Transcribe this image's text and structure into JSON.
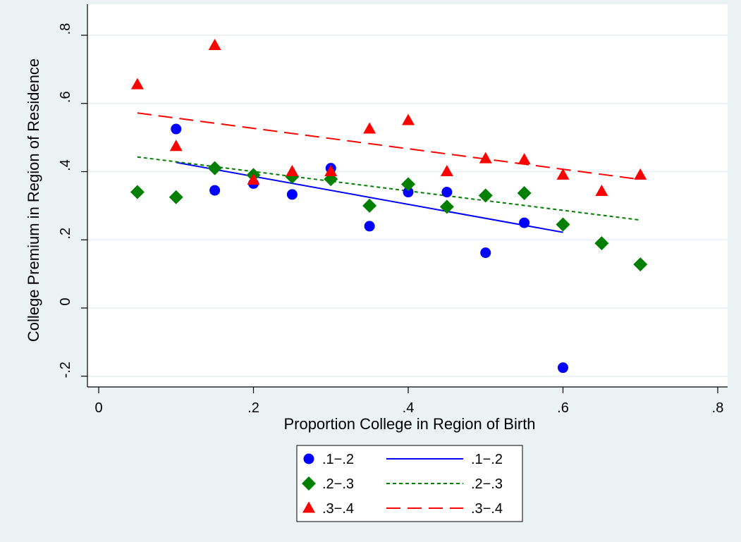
{
  "chart_data": {
    "type": "scatter",
    "title": "",
    "xlabel": "Proportion College in Region of Birth",
    "ylabel": "College Premium in Region of Residence",
    "xlim": [
      -0.02,
      0.82
    ],
    "ylim": [
      -0.235,
      0.84
    ],
    "x_ticks": [
      0,
      0.2,
      0.4,
      0.6,
      0.8
    ],
    "x_tick_labels": [
      "0",
      ".2",
      ".4",
      ".6",
      ".8"
    ],
    "y_ticks": [
      -0.2,
      0,
      0.2,
      0.4,
      0.6,
      0.8
    ],
    "y_tick_labels": [
      "-.2",
      "0",
      ".2",
      ".4",
      ".6",
      ".8"
    ],
    "grid": "horizontal",
    "legend_position": "bottom",
    "series": [
      {
        "name": ".1−.2",
        "marker": "circle",
        "color": "#0000ff",
        "points": [
          [
            0.1,
            0.525
          ],
          [
            0.15,
            0.345
          ],
          [
            0.2,
            0.365
          ],
          [
            0.25,
            0.333
          ],
          [
            0.3,
            0.41
          ],
          [
            0.35,
            0.24
          ],
          [
            0.4,
            0.34
          ],
          [
            0.45,
            0.34
          ],
          [
            0.5,
            0.162
          ],
          [
            0.55,
            0.25
          ],
          [
            0.6,
            -0.175
          ]
        ],
        "fit": {
          "name": ".1−.2",
          "style": "solid",
          "x": [
            0.1,
            0.6
          ],
          "y": [
            0.427,
            0.222
          ]
        }
      },
      {
        "name": ".2−.3",
        "marker": "diamond",
        "color": "#007f00",
        "points": [
          [
            0.05,
            0.34
          ],
          [
            0.1,
            0.325
          ],
          [
            0.15,
            0.41
          ],
          [
            0.2,
            0.39
          ],
          [
            0.25,
            0.385
          ],
          [
            0.3,
            0.378
          ],
          [
            0.35,
            0.3
          ],
          [
            0.4,
            0.363
          ],
          [
            0.45,
            0.297
          ],
          [
            0.5,
            0.33
          ],
          [
            0.55,
            0.337
          ],
          [
            0.6,
            0.245
          ],
          [
            0.65,
            0.19
          ],
          [
            0.7,
            0.128
          ]
        ],
        "fit": {
          "name": ".2−.3",
          "style": "short-dash",
          "x": [
            0.05,
            0.7
          ],
          "y": [
            0.443,
            0.258
          ]
        }
      },
      {
        "name": ".3−.4",
        "marker": "triangle",
        "color": "#ff0000",
        "points": [
          [
            0.05,
            0.655
          ],
          [
            0.1,
            0.474
          ],
          [
            0.15,
            0.77
          ],
          [
            0.2,
            0.375
          ],
          [
            0.25,
            0.4
          ],
          [
            0.3,
            0.4
          ],
          [
            0.35,
            0.525
          ],
          [
            0.4,
            0.55
          ],
          [
            0.45,
            0.4
          ],
          [
            0.5,
            0.438
          ],
          [
            0.55,
            0.435
          ],
          [
            0.6,
            0.39
          ],
          [
            0.65,
            0.342
          ],
          [
            0.7,
            0.39
          ]
        ],
        "fit": {
          "name": ".3−.4",
          "style": "long-dash",
          "x": [
            0.05,
            0.7
          ],
          "y": [
            0.572,
            0.377
          ]
        }
      }
    ]
  },
  "colors": {
    "outer_background": "#eaf2f3",
    "plot_background": "#ffffff",
    "grid": "#eaf2f3"
  }
}
